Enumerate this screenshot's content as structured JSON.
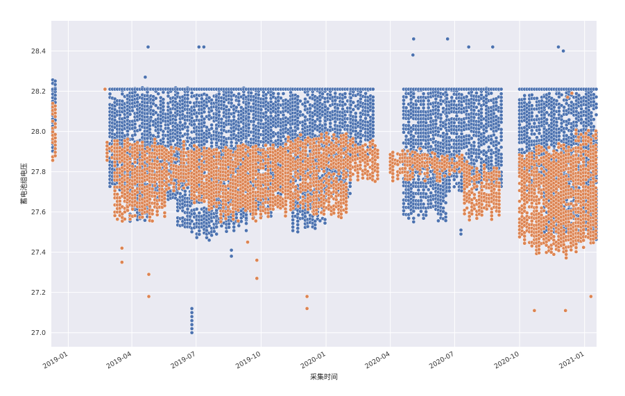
{
  "chart_data": {
    "type": "scatter",
    "title": "",
    "xlabel": "采集时间",
    "ylabel": "蓄电池组电压",
    "x_type": "date",
    "xlim": [
      "2018-12-08",
      "2021-01-18"
    ],
    "ylim": [
      26.93,
      28.55
    ],
    "grid": true,
    "legend": "none",
    "xticks": [
      {
        "date": "2019-01-01",
        "label": "2019-01"
      },
      {
        "date": "2019-04-01",
        "label": "2019-04"
      },
      {
        "date": "2019-07-01",
        "label": "2019-07"
      },
      {
        "date": "2019-10-01",
        "label": "2019-10"
      },
      {
        "date": "2020-01-01",
        "label": "2020-01"
      },
      {
        "date": "2020-04-01",
        "label": "2020-04"
      },
      {
        "date": "2020-07-01",
        "label": "2020-07"
      },
      {
        "date": "2020-10-01",
        "label": "2020-10"
      },
      {
        "date": "2021-01-01",
        "label": "2021-01"
      }
    ],
    "yticks": [
      {
        "value": 27.0,
        "label": "27.0"
      },
      {
        "value": 27.2,
        "label": "27.2"
      },
      {
        "value": 27.4,
        "label": "27.4"
      },
      {
        "value": 27.6,
        "label": "27.6"
      },
      {
        "value": 27.8,
        "label": "27.8"
      },
      {
        "value": 28.0,
        "label": "28.0"
      },
      {
        "value": 28.2,
        "label": "28.2"
      },
      {
        "value": 28.4,
        "label": "28.4"
      }
    ],
    "series": [
      {
        "name": "series-blue",
        "color": "#4c72b0",
        "segments": [
          {
            "start": "2018-12-10",
            "end": "2018-12-14",
            "min": 27.85,
            "max": 28.28
          },
          {
            "start": "2019-03-01",
            "end": "2019-03-26",
            "min": 27.7,
            "max": 28.22
          },
          {
            "start": "2019-03-26",
            "end": "2019-04-28",
            "min": 27.55,
            "max": 28.22
          },
          {
            "start": "2019-04-28",
            "end": "2019-06-05",
            "min": 27.62,
            "max": 28.22
          },
          {
            "start": "2019-06-05",
            "end": "2019-06-25",
            "min": 27.5,
            "max": 28.22
          },
          {
            "start": "2019-06-25",
            "end": "2019-07-30",
            "min": 27.45,
            "max": 28.22
          },
          {
            "start": "2019-07-30",
            "end": "2019-09-10",
            "min": 27.5,
            "max": 28.22
          },
          {
            "start": "2019-09-10",
            "end": "2019-10-15",
            "min": 27.55,
            "max": 28.22
          },
          {
            "start": "2019-10-15",
            "end": "2019-11-15",
            "min": 27.65,
            "max": 28.22
          },
          {
            "start": "2019-11-15",
            "end": "2019-12-31",
            "min": 27.5,
            "max": 28.22
          },
          {
            "start": "2019-12-31",
            "end": "2020-02-05",
            "min": 27.65,
            "max": 28.22
          },
          {
            "start": "2020-02-05",
            "end": "2020-03-10",
            "min": 27.85,
            "max": 28.22
          },
          {
            "start": "2020-04-20",
            "end": "2020-06-20",
            "min": 27.55,
            "max": 28.22
          },
          {
            "start": "2020-06-20",
            "end": "2020-09-05",
            "min": 27.7,
            "max": 28.22
          },
          {
            "start": "2020-10-01",
            "end": "2020-11-05",
            "min": 27.7,
            "max": 28.2
          },
          {
            "start": "2020-11-05",
            "end": "2021-01-18",
            "min": 27.45,
            "max": 28.22
          }
        ],
        "outliers": [
          {
            "x": "2019-04-24",
            "y": 28.42
          },
          {
            "x": "2019-07-05",
            "y": 28.42
          },
          {
            "x": "2019-07-12",
            "y": 28.42
          },
          {
            "x": "2019-04-20",
            "y": 28.27
          },
          {
            "x": "2020-05-04",
            "y": 28.46
          },
          {
            "x": "2020-05-03",
            "y": 28.38
          },
          {
            "x": "2020-06-21",
            "y": 28.46
          },
          {
            "x": "2020-07-21",
            "y": 28.42
          },
          {
            "x": "2020-08-24",
            "y": 28.42
          },
          {
            "x": "2020-11-25",
            "y": 28.42
          },
          {
            "x": "2020-12-02",
            "y": 28.4
          },
          {
            "x": "2019-06-25",
            "y": 27.0
          },
          {
            "x": "2019-06-25",
            "y": 27.02
          },
          {
            "x": "2019-06-25",
            "y": 27.04
          },
          {
            "x": "2019-06-25",
            "y": 27.06
          },
          {
            "x": "2019-06-25",
            "y": 27.08
          },
          {
            "x": "2019-06-25",
            "y": 27.1
          },
          {
            "x": "2019-06-25",
            "y": 27.12
          },
          {
            "x": "2019-08-20",
            "y": 27.38
          },
          {
            "x": "2019-08-20",
            "y": 27.41
          },
          {
            "x": "2020-07-10",
            "y": 27.49
          },
          {
            "x": "2020-07-10",
            "y": 27.51
          }
        ]
      },
      {
        "name": "series-orange",
        "color": "#dd8452",
        "segments": [
          {
            "start": "2018-12-10",
            "end": "2018-12-14",
            "min": 27.83,
            "max": 28.15
          },
          {
            "start": "2019-02-25",
            "end": "2019-03-08",
            "min": 27.85,
            "max": 27.97
          },
          {
            "start": "2019-03-08",
            "end": "2019-03-26",
            "min": 27.55,
            "max": 27.97
          },
          {
            "start": "2019-03-26",
            "end": "2019-05-20",
            "min": 27.55,
            "max": 27.97
          },
          {
            "start": "2019-05-20",
            "end": "2019-06-25",
            "min": 27.7,
            "max": 27.95
          },
          {
            "start": "2019-06-25",
            "end": "2019-08-05",
            "min": 27.6,
            "max": 27.95
          },
          {
            "start": "2019-08-05",
            "end": "2019-09-20",
            "min": 27.55,
            "max": 27.95
          },
          {
            "start": "2019-09-20",
            "end": "2019-11-05",
            "min": 27.55,
            "max": 27.95
          },
          {
            "start": "2019-11-05",
            "end": "2019-12-15",
            "min": 27.6,
            "max": 28.0
          },
          {
            "start": "2019-12-15",
            "end": "2020-02-01",
            "min": 27.55,
            "max": 28.0
          },
          {
            "start": "2020-02-01",
            "end": "2020-03-15",
            "min": 27.75,
            "max": 27.97
          },
          {
            "start": "2020-04-01",
            "end": "2020-05-20",
            "min": 27.75,
            "max": 27.92
          },
          {
            "start": "2020-05-20",
            "end": "2020-07-15",
            "min": 27.75,
            "max": 27.9
          },
          {
            "start": "2020-07-15",
            "end": "2020-09-05",
            "min": 27.55,
            "max": 27.85
          },
          {
            "start": "2020-10-01",
            "end": "2020-10-25",
            "min": 27.42,
            "max": 27.9
          },
          {
            "start": "2020-10-25",
            "end": "2020-12-20",
            "min": 27.37,
            "max": 27.95
          },
          {
            "start": "2020-12-20",
            "end": "2021-01-18",
            "min": 27.4,
            "max": 28.02
          }
        ],
        "outliers": [
          {
            "x": "2019-02-22",
            "y": 28.21
          },
          {
            "x": "2019-03-18",
            "y": 27.42
          },
          {
            "x": "2019-03-18",
            "y": 27.35
          },
          {
            "x": "2019-04-25",
            "y": 27.29
          },
          {
            "x": "2019-04-25",
            "y": 27.18
          },
          {
            "x": "2019-09-12",
            "y": 27.45
          },
          {
            "x": "2019-09-25",
            "y": 27.36
          },
          {
            "x": "2019-09-25",
            "y": 27.27
          },
          {
            "x": "2019-12-05",
            "y": 27.18
          },
          {
            "x": "2019-12-05",
            "y": 27.12
          },
          {
            "x": "2020-10-22",
            "y": 27.11
          },
          {
            "x": "2020-12-05",
            "y": 27.11
          },
          {
            "x": "2021-01-10",
            "y": 27.18
          },
          {
            "x": "2020-12-08",
            "y": 28.17
          },
          {
            "x": "2020-12-14",
            "y": 28.19
          }
        ]
      }
    ]
  }
}
